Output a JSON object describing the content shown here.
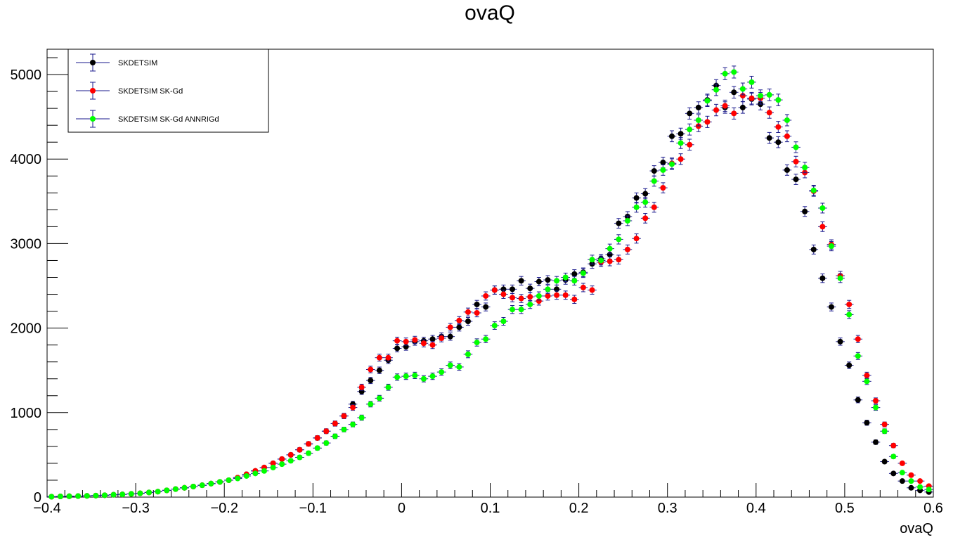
{
  "chart_data": {
    "type": "scatter",
    "title": "ovaQ",
    "xlabel": "ovaQ",
    "ylabel": "",
    "xlim": [
      -0.4,
      0.6
    ],
    "ylim": [
      0,
      5300
    ],
    "x_ticks": [
      -0.4,
      -0.3,
      -0.2,
      -0.1,
      0,
      0.1,
      0.2,
      0.3,
      0.4,
      0.5,
      0.6
    ],
    "x_tick_labels": [
      "−0.4",
      "−0.3",
      "−0.2",
      "−0.1",
      "0",
      "0.1",
      "0.2",
      "0.3",
      "0.4",
      "0.5",
      "0.6"
    ],
    "y_ticks": [
      0,
      1000,
      2000,
      3000,
      4000,
      5000
    ],
    "y_tick_labels": [
      "0",
      "1000",
      "2000",
      "3000",
      "4000",
      "5000"
    ],
    "grid": false,
    "legend_position": "top-left",
    "series": [
      {
        "name": "SKDETSIM",
        "color": "#000000",
        "x": [
          -0.395,
          -0.385,
          -0.375,
          -0.365,
          -0.355,
          -0.345,
          -0.335,
          -0.325,
          -0.315,
          -0.305,
          -0.295,
          -0.285,
          -0.275,
          -0.265,
          -0.255,
          -0.245,
          -0.235,
          -0.225,
          -0.215,
          -0.205,
          -0.195,
          -0.185,
          -0.175,
          -0.165,
          -0.155,
          -0.145,
          -0.135,
          -0.125,
          -0.115,
          -0.105,
          -0.095,
          -0.085,
          -0.075,
          -0.065,
          -0.055,
          -0.045,
          -0.035,
          -0.025,
          -0.015,
          -0.005,
          0.005,
          0.015,
          0.025,
          0.035,
          0.045,
          0.055,
          0.065,
          0.075,
          0.085,
          0.095,
          0.105,
          0.115,
          0.125,
          0.135,
          0.145,
          0.155,
          0.165,
          0.175,
          0.185,
          0.195,
          0.205,
          0.215,
          0.225,
          0.235,
          0.245,
          0.255,
          0.265,
          0.275,
          0.285,
          0.295,
          0.305,
          0.315,
          0.325,
          0.335,
          0.345,
          0.355,
          0.365,
          0.375,
          0.385,
          0.395,
          0.405,
          0.415,
          0.425,
          0.435,
          0.445,
          0.455,
          0.465,
          0.475,
          0.485,
          0.495,
          0.505,
          0.515,
          0.525,
          0.535,
          0.545,
          0.555,
          0.565,
          0.575,
          0.585,
          0.595
        ],
        "y": [
          5,
          8,
          10,
          12,
          15,
          18,
          22,
          28,
          32,
          38,
          45,
          55,
          65,
          80,
          95,
          110,
          125,
          140,
          160,
          180,
          200,
          230,
          270,
          310,
          350,
          400,
          450,
          500,
          560,
          630,
          700,
          780,
          870,
          960,
          1100,
          1250,
          1380,
          1500,
          1620,
          1760,
          1780,
          1840,
          1850,
          1870,
          1900,
          1900,
          2010,
          2080,
          2280,
          2250,
          2450,
          2460,
          2460,
          2560,
          2470,
          2550,
          2570,
          2460,
          2570,
          2640,
          2660,
          2760,
          2820,
          2870,
          3240,
          3320,
          3540,
          3590,
          3860,
          3960,
          4270,
          4300,
          4540,
          4610,
          4700,
          4870,
          4610,
          4790,
          4610,
          4710,
          4650,
          4250,
          4200,
          3870,
          3760,
          3380,
          2930,
          2590,
          2250,
          1840,
          1560,
          1150,
          880,
          650,
          420,
          280,
          190,
          110,
          80,
          60
        ],
        "err": [
          3,
          3,
          3,
          4,
          4,
          4,
          5,
          5,
          6,
          6,
          7,
          7,
          8,
          9,
          10,
          10,
          11,
          12,
          13,
          13,
          14,
          15,
          16,
          18,
          19,
          20,
          21,
          22,
          24,
          25,
          26,
          28,
          30,
          31,
          33,
          35,
          37,
          39,
          40,
          42,
          42,
          43,
          43,
          43,
          44,
          44,
          45,
          46,
          48,
          47,
          49,
          50,
          50,
          51,
          50,
          50,
          51,
          50,
          51,
          51,
          52,
          53,
          53,
          54,
          57,
          58,
          60,
          60,
          62,
          63,
          65,
          66,
          67,
          68,
          69,
          70,
          68,
          69,
          68,
          69,
          68,
          65,
          65,
          62,
          61,
          58,
          54,
          51,
          47,
          43,
          39,
          34,
          30,
          26,
          21,
          17,
          14,
          11,
          9,
          8
        ]
      },
      {
        "name": "SKDETSIM SK-Gd",
        "color": "#ff0000",
        "x": [
          -0.395,
          -0.385,
          -0.375,
          -0.365,
          -0.355,
          -0.345,
          -0.335,
          -0.325,
          -0.315,
          -0.305,
          -0.295,
          -0.285,
          -0.275,
          -0.265,
          -0.255,
          -0.245,
          -0.235,
          -0.225,
          -0.215,
          -0.205,
          -0.195,
          -0.185,
          -0.175,
          -0.165,
          -0.155,
          -0.145,
          -0.135,
          -0.125,
          -0.115,
          -0.105,
          -0.095,
          -0.085,
          -0.075,
          -0.065,
          -0.055,
          -0.045,
          -0.035,
          -0.025,
          -0.015,
          -0.005,
          0.005,
          0.015,
          0.025,
          0.035,
          0.045,
          0.055,
          0.065,
          0.075,
          0.085,
          0.095,
          0.105,
          0.115,
          0.125,
          0.135,
          0.145,
          0.155,
          0.165,
          0.175,
          0.185,
          0.195,
          0.205,
          0.215,
          0.225,
          0.235,
          0.245,
          0.255,
          0.265,
          0.275,
          0.285,
          0.295,
          0.305,
          0.315,
          0.325,
          0.335,
          0.345,
          0.355,
          0.365,
          0.375,
          0.385,
          0.395,
          0.405,
          0.415,
          0.425,
          0.435,
          0.445,
          0.455,
          0.465,
          0.475,
          0.485,
          0.495,
          0.505,
          0.515,
          0.525,
          0.535,
          0.545,
          0.555,
          0.565,
          0.575,
          0.585,
          0.595
        ],
        "y": [
          5,
          8,
          10,
          12,
          15,
          18,
          22,
          28,
          32,
          38,
          45,
          55,
          65,
          80,
          95,
          110,
          125,
          140,
          160,
          180,
          200,
          230,
          270,
          310,
          350,
          400,
          450,
          500,
          560,
          630,
          700,
          780,
          870,
          960,
          1060,
          1300,
          1510,
          1650,
          1650,
          1850,
          1840,
          1860,
          1820,
          1800,
          1880,
          2010,
          2090,
          2190,
          2180,
          2380,
          2450,
          2400,
          2360,
          2350,
          2370,
          2320,
          2380,
          2390,
          2390,
          2340,
          2480,
          2450,
          2780,
          2790,
          2810,
          2930,
          3060,
          3300,
          3430,
          3660,
          3950,
          4000,
          4170,
          4390,
          4440,
          4580,
          4630,
          4540,
          4750,
          4720,
          4720,
          4550,
          4380,
          4270,
          3970,
          3840,
          3620,
          3200,
          2990,
          2620,
          2280,
          1870,
          1440,
          1140,
          860,
          610,
          400,
          260,
          190,
          130
        ],
        "err": [
          3,
          3,
          3,
          4,
          4,
          4,
          5,
          5,
          6,
          6,
          7,
          7,
          8,
          9,
          10,
          10,
          11,
          12,
          13,
          13,
          14,
          15,
          16,
          18,
          19,
          20,
          21,
          22,
          24,
          25,
          26,
          28,
          30,
          31,
          33,
          36,
          39,
          41,
          41,
          43,
          43,
          43,
          43,
          42,
          43,
          45,
          46,
          47,
          47,
          49,
          49,
          49,
          49,
          48,
          49,
          48,
          49,
          49,
          49,
          48,
          50,
          49,
          53,
          53,
          53,
          54,
          55,
          57,
          59,
          60,
          63,
          63,
          65,
          66,
          67,
          68,
          68,
          67,
          69,
          69,
          69,
          67,
          66,
          65,
          63,
          62,
          60,
          57,
          55,
          51,
          48,
          43,
          38,
          34,
          29,
          25,
          20,
          16,
          14,
          11
        ]
      },
      {
        "name": "SKDETSIM SK-Gd ANNRIGd",
        "color": "#00ff00",
        "x": [
          -0.395,
          -0.385,
          -0.375,
          -0.365,
          -0.355,
          -0.345,
          -0.335,
          -0.325,
          -0.315,
          -0.305,
          -0.295,
          -0.285,
          -0.275,
          -0.265,
          -0.255,
          -0.245,
          -0.235,
          -0.225,
          -0.215,
          -0.205,
          -0.195,
          -0.185,
          -0.175,
          -0.165,
          -0.155,
          -0.145,
          -0.135,
          -0.125,
          -0.115,
          -0.105,
          -0.095,
          -0.085,
          -0.075,
          -0.065,
          -0.055,
          -0.045,
          -0.035,
          -0.025,
          -0.015,
          -0.005,
          0.005,
          0.015,
          0.025,
          0.035,
          0.045,
          0.055,
          0.065,
          0.075,
          0.085,
          0.095,
          0.105,
          0.115,
          0.125,
          0.135,
          0.145,
          0.155,
          0.165,
          0.175,
          0.185,
          0.195,
          0.205,
          0.215,
          0.225,
          0.235,
          0.245,
          0.255,
          0.265,
          0.275,
          0.285,
          0.295,
          0.305,
          0.315,
          0.325,
          0.335,
          0.345,
          0.355,
          0.365,
          0.375,
          0.385,
          0.395,
          0.405,
          0.415,
          0.425,
          0.435,
          0.445,
          0.455,
          0.465,
          0.475,
          0.485,
          0.495,
          0.505,
          0.515,
          0.525,
          0.535,
          0.545,
          0.555,
          0.565,
          0.575,
          0.585,
          0.595
        ],
        "y": [
          5,
          8,
          10,
          12,
          15,
          18,
          22,
          28,
          32,
          38,
          45,
          55,
          65,
          80,
          95,
          110,
          125,
          140,
          160,
          180,
          200,
          220,
          250,
          280,
          310,
          350,
          390,
          430,
          470,
          520,
          580,
          640,
          720,
          800,
          860,
          940,
          1100,
          1170,
          1300,
          1420,
          1430,
          1440,
          1400,
          1430,
          1480,
          1560,
          1540,
          1690,
          1830,
          1870,
          2030,
          2080,
          2220,
          2220,
          2280,
          2380,
          2460,
          2560,
          2600,
          2560,
          2650,
          2810,
          2800,
          2940,
          3050,
          3270,
          3430,
          3490,
          3740,
          3870,
          3940,
          4190,
          4350,
          4460,
          4690,
          4820,
          5010,
          5030,
          4830,
          4910,
          4750,
          4760,
          4700,
          4460,
          4140,
          3900,
          3630,
          3420,
          2970,
          2590,
          2160,
          1670,
          1370,
          1060,
          780,
          480,
          290,
          190,
          120,
          90
        ],
        "err": [
          3,
          3,
          3,
          4,
          4,
          4,
          5,
          5,
          6,
          6,
          7,
          7,
          8,
          9,
          10,
          10,
          11,
          12,
          13,
          13,
          14,
          15,
          16,
          17,
          18,
          19,
          20,
          21,
          22,
          23,
          24,
          25,
          27,
          28,
          29,
          31,
          33,
          34,
          36,
          38,
          38,
          38,
          37,
          38,
          38,
          39,
          39,
          41,
          43,
          43,
          45,
          46,
          47,
          47,
          48,
          49,
          50,
          51,
          51,
          51,
          51,
          53,
          53,
          54,
          55,
          57,
          59,
          59,
          61,
          62,
          63,
          65,
          66,
          67,
          68,
          69,
          71,
          71,
          70,
          70,
          69,
          69,
          69,
          67,
          64,
          62,
          60,
          58,
          55,
          51,
          46,
          41,
          37,
          33,
          28,
          22,
          17,
          14,
          11,
          9
        ]
      }
    ]
  }
}
